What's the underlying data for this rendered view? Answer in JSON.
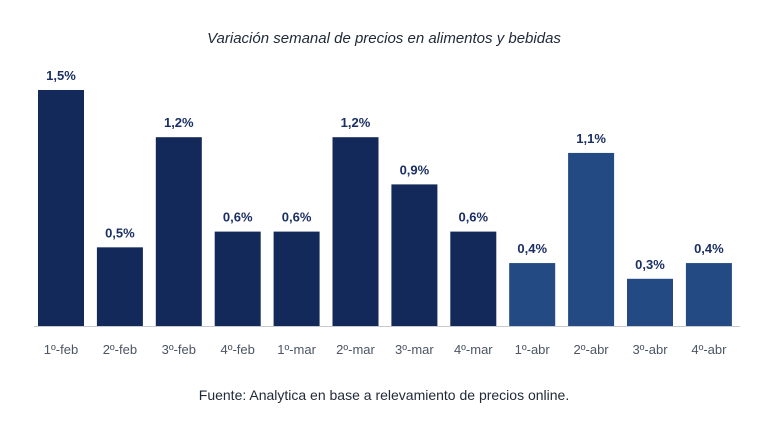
{
  "chart_data": {
    "type": "bar",
    "title": "Variación semanal de precios en alimentos y bebidas",
    "categories": [
      "1º-feb",
      "2º-feb",
      "3º-feb",
      "4º-feb",
      "1º-mar",
      "2º-mar",
      "3º-mar",
      "4º-mar",
      "1º-abr",
      "2º-abr",
      "3º-abr",
      "4º-abr"
    ],
    "values": [
      1.5,
      0.5,
      1.2,
      0.6,
      0.6,
      1.2,
      0.9,
      0.6,
      0.4,
      1.1,
      0.3,
      0.4
    ],
    "value_labels": [
      "1,5%",
      "0,5%",
      "1,2%",
      "0,6%",
      "0,6%",
      "1,2%",
      "0,9%",
      "0,6%",
      "0,4%",
      "1,1%",
      "0,3%",
      "0,4%"
    ],
    "bar_colors": [
      "#13295a",
      "#13295a",
      "#13295a",
      "#13295a",
      "#13295a",
      "#13295a",
      "#13295a",
      "#13295a",
      "#234a82",
      "#234a82",
      "#234a82",
      "#234a82"
    ],
    "ylim": [
      0,
      1.5
    ],
    "grid": false,
    "legend": "none"
  },
  "source": "Fuente: Analytica en base a relevamiento de precios online."
}
